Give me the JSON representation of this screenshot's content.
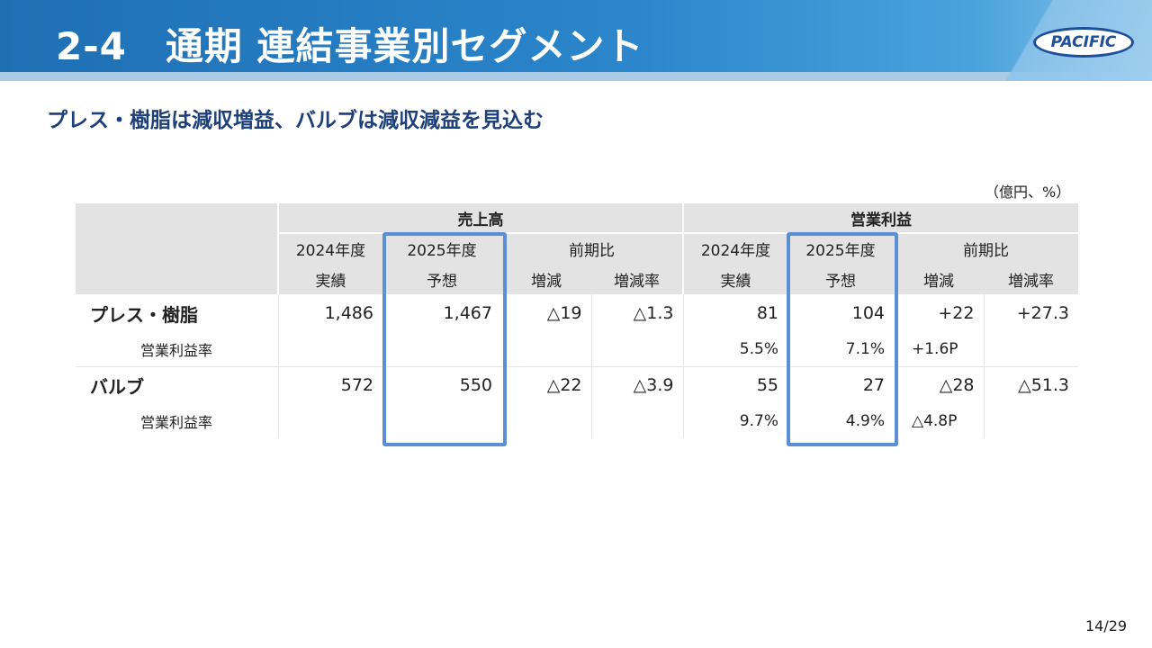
{
  "header": {
    "title": "2-4　通期 連結事業別セグメント",
    "logo_text": "PACIFIC"
  },
  "subtitle": "プレス・樹脂は減収増益、バルブは減収減益を見込む",
  "unit": "（億円、%）",
  "table": {
    "group_sales": "売上高",
    "group_profit": "営業利益",
    "col_2024": "2024年度",
    "col_2024_sub": "実績",
    "col_2025": "2025年度",
    "col_2025_sub": "予想",
    "col_yoy": "前期比",
    "col_diff": "増減",
    "col_rate": "増減率",
    "rows": [
      {
        "label": "プレス・樹脂",
        "sales_2024": "1,486",
        "sales_2025": "1,467",
        "sales_diff": "△19",
        "sales_rate": "△1.3",
        "op_2024": "81",
        "op_2025": "104",
        "op_diff": "+22",
        "op_rate": "+27.3",
        "sub_label": "営業利益率",
        "margin_2024": "5.5%",
        "margin_2025": "7.1%",
        "margin_diff": "+1.6P"
      },
      {
        "label": "バルブ",
        "sales_2024": "572",
        "sales_2025": "550",
        "sales_diff": "△22",
        "sales_rate": "△3.9",
        "op_2024": "55",
        "op_2025": "27",
        "op_diff": "△28",
        "op_rate": "△51.3",
        "sub_label": "営業利益率",
        "margin_2024": "9.7%",
        "margin_2025": "4.9%",
        "margin_diff": "△4.8P"
      }
    ]
  },
  "footer": {
    "page": "14/29"
  },
  "colors": {
    "header": "#2b86cc",
    "subtitle": "#1d3f7a",
    "highlight": "#5b8fd4",
    "header_cell": "#e3e3e3"
  }
}
